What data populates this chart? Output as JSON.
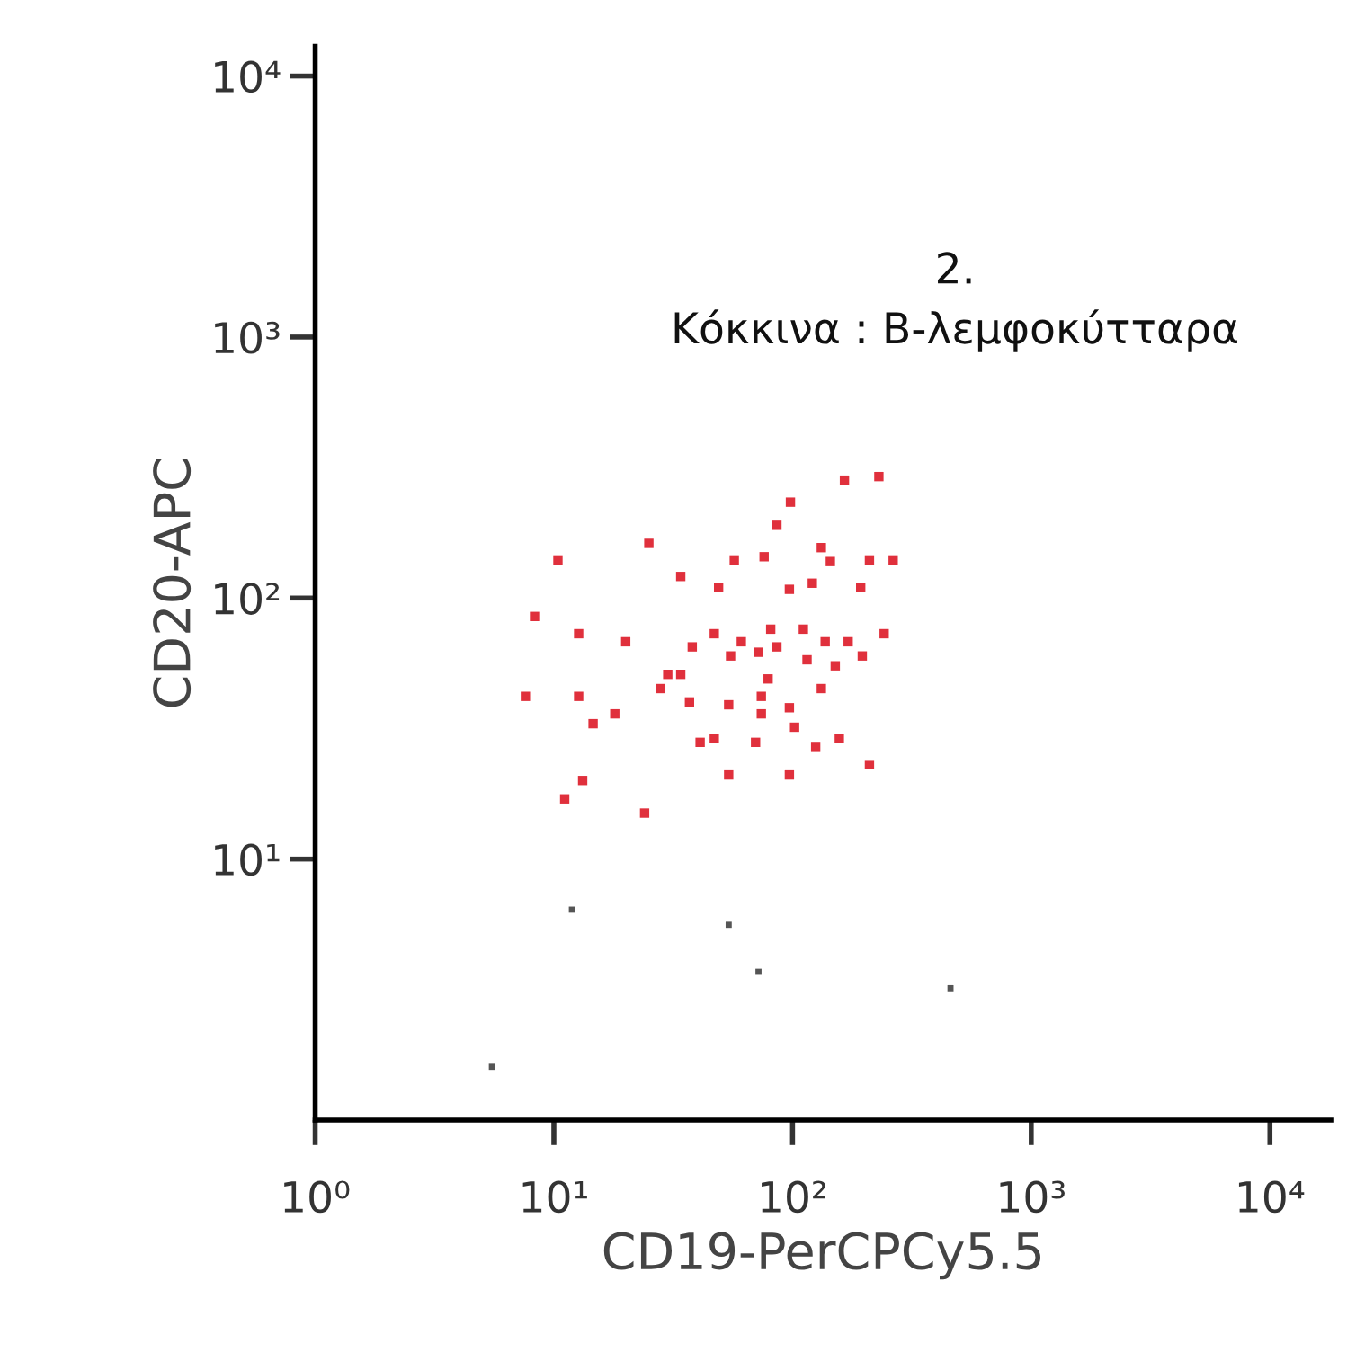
{
  "chart_data": {
    "type": "scatter",
    "xlabel": "CD19-PerCPCy5.5",
    "ylabel": "CD20-APC",
    "annotations": [
      "2.",
      "Κόκκινα : Β-λεμφοκύτταρα"
    ],
    "log": "xy",
    "grid": false,
    "legend": false,
    "marker": "square",
    "xlim": [
      1,
      18000
    ],
    "ylim": [
      1,
      13000
    ],
    "xticks": [
      {
        "value": 1,
        "label": "10⁰"
      },
      {
        "value": 10,
        "label": "10¹"
      },
      {
        "value": 100,
        "label": "10²"
      },
      {
        "value": 1000,
        "label": "10³"
      },
      {
        "value": 10000,
        "label": "10⁴"
      }
    ],
    "yticks": [
      {
        "value": 10,
        "label": "10¹"
      },
      {
        "value": 100,
        "label": "10²"
      },
      {
        "value": 1000,
        "label": "10³"
      },
      {
        "value": 10000,
        "label": "10⁴"
      }
    ],
    "series": [
      {
        "color": "#e0303c",
        "x": [
          165,
          230,
          98,
          86,
          25,
          10.4,
          57,
          76,
          132,
          144,
          210,
          264,
          34,
          49,
          97,
          121,
          193,
          8.3,
          12.7,
          20,
          38,
          47,
          61,
          81,
          86,
          111,
          137,
          171,
          242,
          55,
          72,
          115,
          196,
          151,
          30,
          34,
          79,
          28,
          37,
          7.6,
          12.7,
          54,
          74,
          132,
          14.6,
          18,
          74,
          97,
          41,
          47,
          70,
          102,
          125,
          157,
          54,
          97,
          210,
          13.2,
          11.1,
          24
        ],
        "values": [
          283,
          292,
          233,
          190,
          162,
          140,
          140,
          144,
          156,
          138,
          140,
          140,
          121,
          110,
          108,
          114,
          110,
          85,
          73,
          68,
          65,
          73,
          68,
          76,
          65,
          76,
          68,
          68,
          73,
          60,
          62,
          58,
          60,
          55,
          51,
          51,
          49,
          45,
          40,
          42,
          42,
          39,
          42,
          45,
          33,
          36,
          36,
          38,
          28,
          29,
          28,
          32,
          27,
          29,
          21,
          21,
          23,
          20,
          17,
          15
        ]
      },
      {
        "color": "#555555",
        "x": [
          11.9,
          54,
          72,
          459,
          5.5
        ],
        "values": [
          6.4,
          5.6,
          3.7,
          3.2,
          1.6
        ]
      }
    ]
  }
}
